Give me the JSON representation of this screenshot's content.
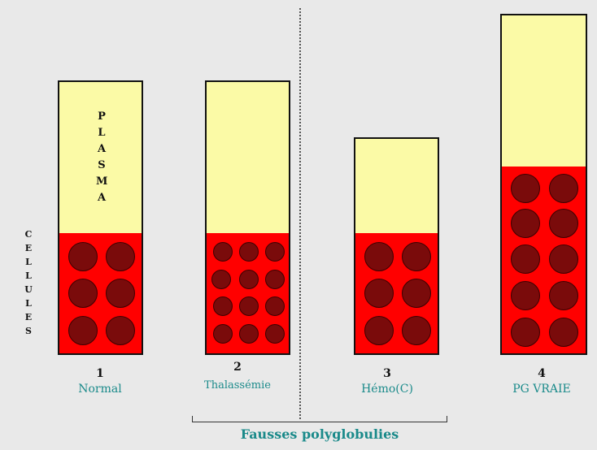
{
  "plasma_label": "PLASMA",
  "cells_label": "CELLULES",
  "colors": {
    "plasma": "#fbfaa6",
    "cells": "#ff0000",
    "cell_dot": "#7a0b0b",
    "label_teal": "#1a8a8a"
  },
  "tubes": [
    {
      "number": "1",
      "name": "Normal"
    },
    {
      "number": "2",
      "name": "Thalassémie"
    },
    {
      "number": "3",
      "name": "Hémo(C)"
    },
    {
      "number": "4",
      "name": "PG VRAIE"
    }
  ],
  "group_label": "Fausses polyglobulies"
}
